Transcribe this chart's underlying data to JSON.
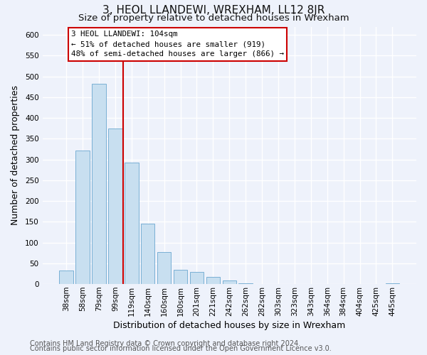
{
  "title": "3, HEOL LLANDEWI, WREXHAM, LL12 8JR",
  "subtitle": "Size of property relative to detached houses in Wrexham",
  "xlabel": "Distribution of detached houses by size in Wrexham",
  "ylabel": "Number of detached properties",
  "bar_labels": [
    "38sqm",
    "58sqm",
    "79sqm",
    "99sqm",
    "119sqm",
    "140sqm",
    "160sqm",
    "180sqm",
    "201sqm",
    "221sqm",
    "242sqm",
    "262sqm",
    "282sqm",
    "303sqm",
    "323sqm",
    "343sqm",
    "364sqm",
    "384sqm",
    "404sqm",
    "425sqm",
    "445sqm"
  ],
  "bar_values": [
    32,
    322,
    483,
    375,
    292,
    145,
    77,
    34,
    30,
    18,
    8,
    2,
    1,
    0,
    0,
    0,
    0,
    0,
    0,
    0,
    2
  ],
  "bar_color": "#c8dff0",
  "bar_edge_color": "#7ab0d4",
  "vline_x": 3.5,
  "vline_color": "#cc0000",
  "annotation_line1": "3 HEOL LLANDEWI: 104sqm",
  "annotation_line2": "← 51% of detached houses are smaller (919)",
  "annotation_line3": "48% of semi-detached houses are larger (866) →",
  "annotation_box_color": "#ffffff",
  "annotation_box_edge": "#cc0000",
  "ylim": [
    0,
    620
  ],
  "yticks": [
    0,
    50,
    100,
    150,
    200,
    250,
    300,
    350,
    400,
    450,
    500,
    550,
    600
  ],
  "footer_line1": "Contains HM Land Registry data © Crown copyright and database right 2024.",
  "footer_line2": "Contains public sector information licensed under the Open Government Licence v3.0.",
  "background_color": "#eef2fb",
  "plot_bg_color": "#eef2fb",
  "grid_color": "#ffffff",
  "title_fontsize": 11,
  "subtitle_fontsize": 9.5,
  "axis_label_fontsize": 9,
  "tick_fontsize": 7.5,
  "footer_fontsize": 7
}
